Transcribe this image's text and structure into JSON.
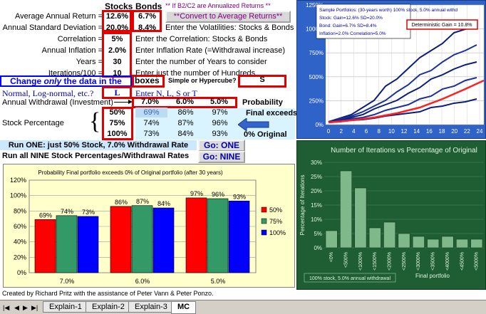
{
  "header": {
    "stocks": "Stocks",
    "bonds": "Bonds",
    "note": "** If B2/C2 are Annualized Returns **"
  },
  "params": [
    {
      "label": "Average Annual Return =",
      "stocks": "12.6%",
      "bonds": "6.7%",
      "desc": ""
    },
    {
      "label": "Annual Standard Deviation =",
      "stocks": "20.0%",
      "bonds": "8.4%",
      "desc": "Enter the Volatilities: Stocks & Bonds"
    },
    {
      "label": "Correlation =",
      "value": "5%",
      "desc": "Enter the Correlation: Stocks & Bonds"
    },
    {
      "label": "Annual Inflation =",
      "value": "2.0%",
      "desc": "Enter Inflation Rate (=Withdrawal increase)"
    },
    {
      "label": "Years =",
      "value": "30",
      "desc": "Enter the number of Years to consider"
    },
    {
      "label": "Iterations/100 =",
      "value": "10",
      "desc": "Enter just the number of Hundreds"
    }
  ],
  "convert_button": "**Convert to Average Returns**",
  "change_banner": {
    "pre": "Change ",
    "only": "only",
    "post": " the data in the",
    "boxes": "boxes"
  },
  "simple_label": "Simple or Hypercube?",
  "simple_value": "S",
  "dist_label": "Normal, Log-normal, etc.?",
  "dist_value": "L",
  "dist_hint": "Enter N, L, S or T",
  "withdrawal": {
    "label": "Annual Withdrawal (Investment)",
    "rates": [
      "7.0%",
      "6.0%",
      "5.0%"
    ],
    "prob_label": "Probability"
  },
  "final_exceeds": "Final exceeds",
  "zero_original": "0%  Original",
  "stock_pct_label": "Stock Percentage",
  "table": [
    {
      "pct": "50%",
      "v": [
        "69%",
        "86%",
        "97%"
      ]
    },
    {
      "pct": "75%",
      "v": [
        "74%",
        "87%",
        "96%"
      ]
    },
    {
      "pct": "100%",
      "v": [
        "73%",
        "84%",
        "93%"
      ]
    }
  ],
  "run_one": "Run ONE: just 50% Stock, 7.0% Withdrawal Rate",
  "run_nine": "Run all NINE Stock Percentages/Withdrawal Rates",
  "go_one": "Go: ONE",
  "go_nine": "Go: NINE",
  "credit": "Created by Richard Pritz with the assistance of Peter Vann & Peter Ponzo.",
  "tabs": [
    "Explain-1",
    "Explain-2",
    "Explain-3",
    "MC"
  ],
  "active_tab": "MC",
  "colors": {
    "red": "#ff0000",
    "green": "#339966",
    "blue": "#0000ff",
    "chart_bg": "#ffffcc",
    "green_bg": "#1e5e32",
    "blue_bg": "#2f63c8"
  },
  "bar_chart": {
    "type": "bar",
    "title": "Probability Final portfolio exceeds 0% of Original portfolio (after 30 years)",
    "categories": [
      "7.0%",
      "6.0%",
      "5.0%"
    ],
    "series": [
      {
        "name": "50%",
        "values": [
          69,
          86,
          97
        ]
      },
      {
        "name": "75%",
        "values": [
          74,
          87,
          96
        ]
      },
      {
        "name": "100%",
        "values": [
          73,
          84,
          93
        ]
      }
    ],
    "data_labels": [
      [
        "69%",
        "86%",
        "97%"
      ],
      [
        "74%",
        "87%",
        "96%"
      ],
      [
        "73%",
        "84%",
        "93%"
      ]
    ],
    "ylim": [
      0,
      120
    ],
    "yticks": [
      "120%",
      "100%",
      "80%",
      "60%",
      "40%",
      "20%",
      "0%"
    ],
    "legend": "right"
  },
  "line_chart": {
    "type": "line",
    "legend_lines": [
      "Sample Portfolios: (30-years worth) 100% stock, 5.0% annual withd",
      "Stock: Gain=12.6% SD=20.0%",
      "Bond: Gain=6.7% SD=8.4%",
      "Inflation=2.0% Correlation=5.0%"
    ],
    "deterministic": "Deterministic Gain = 10.8%",
    "yticks": [
      "1250%",
      "1000%",
      "750%",
      "500%",
      "250%",
      "0%"
    ],
    "xticks": [
      "0",
      "2",
      "4",
      "6",
      "8",
      "10",
      "12",
      "14",
      "16",
      "18",
      "20",
      "22",
      "24"
    ],
    "ylim": [
      0,
      1250
    ]
  },
  "histogram": {
    "type": "bar",
    "title": "Number of Iterations vs Percentage of Original",
    "ylabel": "Percentage of Iterations",
    "xlabel": "Final portfolio",
    "yticks": [
      "30%",
      "25%",
      "20%",
      "15%",
      "10%",
      "5%",
      "0%"
    ],
    "categories": [
      "<0%",
      "<500%",
      "<1000%",
      "<1500%",
      "<2000%",
      "<2500%",
      "<3000%",
      "<3500%",
      "<4000%",
      "<4500%",
      "<5000%"
    ],
    "values": [
      6,
      27,
      21,
      7,
      9,
      5,
      4,
      3,
      4,
      3,
      3
    ],
    "ylim": [
      0,
      30
    ],
    "footer": "100% stock, 5.0% annual withdrawal"
  }
}
